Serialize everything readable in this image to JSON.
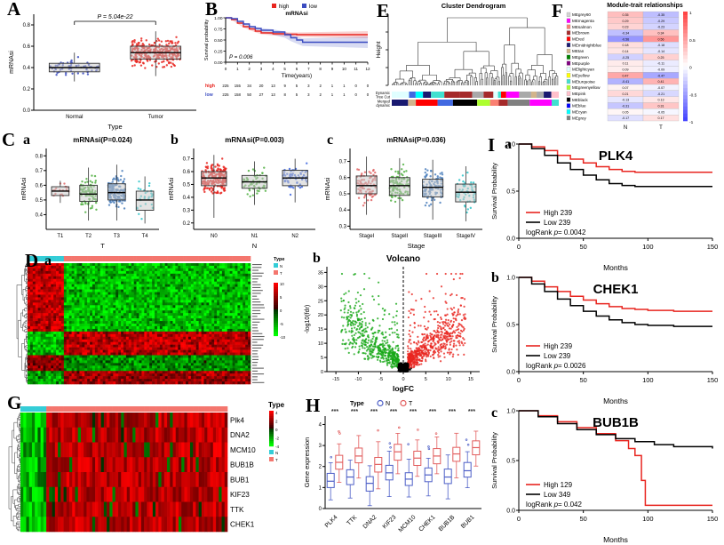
{
  "panel_labels": {
    "A": "A",
    "B": "B",
    "C": "C",
    "D": "D",
    "E": "E",
    "F": "F",
    "G": "G",
    "H": "H",
    "I": "I",
    "a": "a",
    "b": "b",
    "c": "c"
  },
  "chart_data": [
    {
      "id": "A",
      "type": "boxplot-jitter",
      "title": "",
      "p_label": "P = 5.04e-22",
      "xlabel": "Type",
      "ylabel": "mRNAsi",
      "ylim": [
        0.0,
        0.9
      ],
      "yticks": [
        0.0,
        0.2,
        0.4,
        0.6,
        0.8
      ],
      "categories": [
        "Normal",
        "Tumor"
      ],
      "point_colors": [
        "#3b4cc0",
        "#e8251f"
      ],
      "groups": [
        {
          "name": "Normal",
          "n": 60,
          "med": 0.4,
          "sd": 0.045,
          "q1": 0.36,
          "q3": 0.44,
          "lo": 0.27,
          "hi": 0.54
        },
        {
          "name": "Tumor",
          "n": 300,
          "med": 0.54,
          "sd": 0.07,
          "q1": 0.48,
          "q3": 0.6,
          "lo": 0.32,
          "hi": 0.74
        }
      ]
    },
    {
      "id": "B",
      "type": "km",
      "legend_title": "mRNAsi",
      "legend_labels": [
        "high",
        "low"
      ],
      "colors": [
        "#e8251f",
        "#3b4cc0"
      ],
      "p_label": "P = 0.006",
      "xlabel": "Time(years)",
      "ylabel": "Survival probability",
      "xticks": [
        0,
        1,
        2,
        3,
        4,
        5,
        6,
        7,
        8,
        9,
        10,
        11,
        12
      ],
      "yticks": [
        0.0,
        0.25,
        0.5,
        0.75,
        1.0
      ],
      "curves": [
        {
          "name": "high",
          "ci": 0.08,
          "points": [
            [
              0,
              1
            ],
            [
              0.5,
              0.96
            ],
            [
              1,
              0.88
            ],
            [
              1.5,
              0.8
            ],
            [
              2,
              0.75
            ],
            [
              2.5,
              0.7
            ],
            [
              3,
              0.66
            ],
            [
              4,
              0.64
            ],
            [
              5,
              0.63
            ],
            [
              6,
              0.62
            ],
            [
              7,
              0.62
            ],
            [
              12,
              0.62
            ]
          ]
        },
        {
          "name": "low",
          "ci": 0.13,
          "points": [
            [
              0,
              1
            ],
            [
              0.5,
              0.98
            ],
            [
              1,
              0.92
            ],
            [
              1.5,
              0.86
            ],
            [
              2,
              0.8
            ],
            [
              2.5,
              0.76
            ],
            [
              3,
              0.72
            ],
            [
              4,
              0.68
            ],
            [
              5,
              0.62
            ],
            [
              5.5,
              0.55
            ],
            [
              6,
              0.5
            ],
            [
              6.5,
              0.45
            ],
            [
              7,
              0.45
            ],
            [
              12,
              0.45
            ]
          ]
        }
      ],
      "risk_table": {
        "row_labels": [
          "high",
          "low"
        ],
        "rows": [
          [
            225,
            155,
            34,
            20,
            13,
            9,
            5,
            3,
            2,
            1,
            1,
            0,
            0
          ],
          [
            225,
            158,
            50,
            27,
            13,
            8,
            5,
            3,
            2,
            1,
            1,
            0,
            0
          ]
        ]
      }
    },
    {
      "id": "Ca",
      "type": "boxplot-jitter",
      "title": "mRNAsi(P=0.024)",
      "xlabel": "T",
      "ylabel": "mRNAsi",
      "ylim": [
        0.3,
        0.85
      ],
      "yticks": [
        0.4,
        0.5,
        0.6,
        0.7,
        0.8
      ],
      "categories": [
        "T1",
        "T2",
        "T3",
        "T4"
      ],
      "point_colors": [
        "#e06666",
        "#52b043",
        "#4f81bd",
        "#2ec4c9"
      ],
      "groups": [
        {
          "name": "T1",
          "n": 18,
          "med": 0.56,
          "sd": 0.03,
          "q1": 0.53,
          "q3": 0.59,
          "lo": 0.48,
          "hi": 0.63
        },
        {
          "name": "T2",
          "n": 90,
          "med": 0.54,
          "sd": 0.06,
          "q1": 0.49,
          "q3": 0.6,
          "lo": 0.36,
          "hi": 0.72
        },
        {
          "name": "T3",
          "n": 160,
          "med": 0.55,
          "sd": 0.06,
          "q1": 0.5,
          "q3": 0.61,
          "lo": 0.36,
          "hi": 0.74
        },
        {
          "name": "T4",
          "n": 28,
          "med": 0.5,
          "sd": 0.07,
          "q1": 0.43,
          "q3": 0.56,
          "lo": 0.34,
          "hi": 0.66
        }
      ]
    },
    {
      "id": "Cb",
      "type": "boxplot-jitter",
      "title": "mRNAsi(P=0.003)",
      "xlabel": "N",
      "ylabel": "mRNAsi",
      "ylim": [
        0.15,
        0.78
      ],
      "yticks": [
        0.2,
        0.3,
        0.4,
        0.5,
        0.6,
        0.7
      ],
      "categories": [
        "N0",
        "N1",
        "N2"
      ],
      "point_colors": [
        "#e8251f",
        "#52b043",
        "#4169e1"
      ],
      "groups": [
        {
          "name": "N0",
          "n": 210,
          "med": 0.55,
          "sd": 0.07,
          "q1": 0.49,
          "q3": 0.6,
          "lo": 0.24,
          "hi": 0.73
        },
        {
          "name": "N1",
          "n": 60,
          "med": 0.52,
          "sd": 0.06,
          "q1": 0.47,
          "q3": 0.57,
          "lo": 0.34,
          "hi": 0.68
        },
        {
          "name": "N2",
          "n": 70,
          "med": 0.55,
          "sd": 0.06,
          "q1": 0.49,
          "q3": 0.61,
          "lo": 0.36,
          "hi": 0.7
        }
      ]
    },
    {
      "id": "Cc",
      "type": "boxplot-jitter",
      "title": "mRNAsi(P=0.036)",
      "xlabel": "Stage",
      "ylabel": "mRNAsi",
      "ylim": [
        0.28,
        0.78
      ],
      "yticks": [
        0.3,
        0.4,
        0.5,
        0.6,
        0.7
      ],
      "categories": [
        "StageI",
        "StageII",
        "StageIII",
        "StageIV"
      ],
      "point_colors": [
        "#e06666",
        "#52b043",
        "#4f81bd",
        "#2ec4c9"
      ],
      "groups": [
        {
          "name": "StageI",
          "n": 90,
          "med": 0.55,
          "sd": 0.06,
          "q1": 0.5,
          "q3": 0.61,
          "lo": 0.37,
          "hi": 0.73
        },
        {
          "name": "StageII",
          "n": 100,
          "med": 0.55,
          "sd": 0.06,
          "q1": 0.49,
          "q3": 0.6,
          "lo": 0.35,
          "hi": 0.72
        },
        {
          "name": "StageIII",
          "n": 110,
          "med": 0.54,
          "sd": 0.06,
          "q1": 0.48,
          "q3": 0.59,
          "lo": 0.34,
          "hi": 0.71
        },
        {
          "name": "StageIV",
          "n": 55,
          "med": 0.51,
          "sd": 0.06,
          "q1": 0.45,
          "q3": 0.56,
          "lo": 0.33,
          "hi": 0.67
        }
      ]
    },
    {
      "id": "Da",
      "type": "heatmap",
      "rows": 46,
      "cols": 86,
      "split": 0.16,
      "ann_colors": [
        "#34cdd7",
        "#f4766e"
      ],
      "legend_title": "Type",
      "legend_items": [
        "N",
        "T"
      ],
      "scale_ticks": [
        10,
        5,
        0,
        -5,
        -10
      ]
    },
    {
      "id": "Db",
      "type": "volcano",
      "title": "Volcano",
      "xlabel": "logFC",
      "ylabel": "-log10(fdr)",
      "xlim": [
        -17,
        17
      ],
      "xticks": [
        -15,
        -10,
        -5,
        0,
        5,
        10,
        15
      ],
      "ylim": [
        0,
        37
      ],
      "yticks": [
        0,
        5,
        10,
        15,
        20,
        25,
        30,
        35
      ],
      "colors": {
        "up": "#e8251f",
        "down": "#18a818",
        "ns": "#000000"
      }
    },
    {
      "id": "E",
      "type": "dendrogram",
      "title": "Cluster Dendrogram",
      "ylabel": "Height",
      "band1_label": [
        "Dynamic",
        "Tree Cut"
      ],
      "band2_label": [
        "Merged",
        "dynamic"
      ],
      "band_colors": [
        "#40E0D0",
        "#4169E1",
        "#A52A2A",
        "#FFFF00",
        "#008000",
        "#FF0000",
        "#000000",
        "#FFC0CB",
        "#FF00FF",
        "#800080",
        "#ADFF2F",
        "#D2B48C",
        "#FA8072",
        "#00FFFF",
        "#191970",
        "#E0FFFF",
        "#A9A9A9",
        "#808080"
      ]
    },
    {
      "id": "F",
      "type": "module-trait",
      "title": "Module-trait relationships",
      "rows": [
        "MEgrey60",
        "MEmagenta",
        "MEsalmon",
        "MEbrown",
        "MEred",
        "MEmidnightblue",
        "MEtan",
        "MEgreen",
        "MEpurple",
        "MElightcyan",
        "MEyellow",
        "MEturquoise",
        "MEgreenyellow",
        "MEpink",
        "MEblack",
        "MEblue",
        "MEcyan",
        "MEgrey"
      ],
      "row_swatches": [
        "#d3d3d3",
        "#ff00ff",
        "#fa8072",
        "#a52a2a",
        "#ff0000",
        "#191970",
        "#d2b48c",
        "#008000",
        "#800080",
        "#e0ffff",
        "#ffff00",
        "#40e0d0",
        "#adff2f",
        "#ffc0cb",
        "#000000",
        "#0000ff",
        "#00ffff",
        "#808080"
      ],
      "values": [
        [
          0.35,
          -0.35
        ],
        [
          0.29,
          -0.29
        ],
        [
          0.23,
          -0.23
        ],
        [
          -0.34,
          0.34
        ],
        [
          -0.56,
          0.56
        ],
        [
          0.18,
          -0.18
        ],
        [
          0.14,
          -0.14
        ],
        [
          -0.25,
          0.25
        ],
        [
          0.11,
          -0.11
        ],
        [
          0.09,
          -0.09
        ],
        [
          0.47,
          -0.47
        ],
        [
          -0.41,
          0.41
        ],
        [
          0.07,
          -0.07
        ],
        [
          0.21,
          -0.21
        ],
        [
          -0.13,
          0.13
        ],
        [
          -0.31,
          0.31
        ],
        [
          0.05,
          -0.05
        ],
        [
          -0.17,
          0.17
        ]
      ],
      "col_labels": [
        "N",
        "T"
      ],
      "colorbar_ticks": [
        1,
        0.5,
        0,
        -0.5,
        -1
      ]
    },
    {
      "id": "G",
      "type": "gene-heatmap",
      "genes": [
        "Plk4",
        "DNA2",
        "MCM10",
        "BUB1B",
        "BUB1",
        "KIF23",
        "TTK",
        "CHEK1"
      ],
      "split": 0.12,
      "ann_colors": [
        "#34cdd7",
        "#f4766e"
      ],
      "legend_title": "Type",
      "legend_items": [
        "N",
        "T"
      ],
      "scale_ticks": [
        4,
        2,
        0,
        -2,
        -4
      ]
    },
    {
      "id": "H",
      "type": "grouped-box",
      "ylabel": "Gene expression",
      "legend_title": "Type",
      "legend_items": [
        {
          "label": "N",
          "color": "#4d5fc7"
        },
        {
          "label": "T",
          "color": "#e25d5d"
        }
      ],
      "sig_label": "***",
      "ylim": [
        0,
        4.4
      ],
      "yticks": [
        0,
        1,
        2,
        3,
        4
      ],
      "categories": [
        "PLK4",
        "TTK",
        "DNA2",
        "KIF23",
        "MCM10",
        "CHEK1",
        "BUB1B",
        "BUB1"
      ],
      "pairs": [
        [
          1.3,
          2.2
        ],
        [
          1.5,
          2.5
        ],
        [
          1.2,
          2.1
        ],
        [
          1.7,
          2.7
        ],
        [
          1.4,
          2.4
        ],
        [
          1.6,
          2.5
        ],
        [
          1.5,
          2.6
        ],
        [
          1.8,
          2.9
        ]
      ]
    },
    {
      "id": "Ia",
      "type": "km2",
      "title": "PLK4",
      "xlabel": "Months",
      "ylabel": "Survival Probability",
      "xticks": [
        0,
        50,
        100,
        150
      ],
      "yticks": [
        0.0,
        0.5,
        1.0
      ],
      "legend": [
        {
          "label": "High",
          "n": 239,
          "color": "#e8251f"
        },
        {
          "label": "Low",
          "n": 239,
          "color": "#000000"
        }
      ],
      "p_prefix": "logRank ",
      "p_italic": "p",
      "p_suffix": "= 0.0042",
      "curves": [
        {
          "color": "#e8251f",
          "points": [
            [
              0,
              1
            ],
            [
              10,
              0.97
            ],
            [
              20,
              0.93
            ],
            [
              30,
              0.88
            ],
            [
              40,
              0.84
            ],
            [
              50,
              0.8
            ],
            [
              60,
              0.76
            ],
            [
              70,
              0.73
            ],
            [
              80,
              0.71
            ],
            [
              90,
              0.7
            ],
            [
              110,
              0.7
            ],
            [
              150,
              0.7
            ]
          ]
        },
        {
          "color": "#000000",
          "points": [
            [
              0,
              1
            ],
            [
              10,
              0.95
            ],
            [
              20,
              0.88
            ],
            [
              30,
              0.8
            ],
            [
              40,
              0.73
            ],
            [
              50,
              0.67
            ],
            [
              60,
              0.62
            ],
            [
              70,
              0.58
            ],
            [
              80,
              0.56
            ],
            [
              90,
              0.55
            ],
            [
              110,
              0.55
            ],
            [
              150,
              0.55
            ]
          ]
        }
      ]
    },
    {
      "id": "Ib",
      "type": "km2",
      "title": "CHEK1",
      "xlabel": "Months",
      "ylabel": "Survival Probability",
      "xticks": [
        0,
        50,
        100,
        150
      ],
      "yticks": [
        0.0,
        0.5,
        1.0
      ],
      "legend": [
        {
          "label": "High",
          "n": 239,
          "color": "#e8251f"
        },
        {
          "label": "Low",
          "n": 239,
          "color": "#000000"
        }
      ],
      "p_prefix": "logRank ",
      "p_italic": "p",
      "p_suffix": "= 0.0026",
      "curves": [
        {
          "color": "#e8251f",
          "points": [
            [
              0,
              1
            ],
            [
              10,
              0.96
            ],
            [
              20,
              0.9
            ],
            [
              30,
              0.85
            ],
            [
              40,
              0.8
            ],
            [
              50,
              0.76
            ],
            [
              60,
              0.72
            ],
            [
              70,
              0.69
            ],
            [
              80,
              0.67
            ],
            [
              90,
              0.66
            ],
            [
              100,
              0.65
            ],
            [
              120,
              0.64
            ],
            [
              150,
              0.64
            ]
          ]
        },
        {
          "color": "#000000",
          "points": [
            [
              0,
              1
            ],
            [
              10,
              0.93
            ],
            [
              20,
              0.85
            ],
            [
              30,
              0.77
            ],
            [
              40,
              0.7
            ],
            [
              50,
              0.64
            ],
            [
              60,
              0.59
            ],
            [
              70,
              0.55
            ],
            [
              80,
              0.52
            ],
            [
              90,
              0.5
            ],
            [
              100,
              0.49
            ],
            [
              120,
              0.48
            ],
            [
              150,
              0.48
            ]
          ]
        }
      ]
    },
    {
      "id": "Ic",
      "type": "km2",
      "title": "BUB1B",
      "xlabel": "Months",
      "ylabel": "Survival Probability",
      "xticks": [
        0,
        50,
        100,
        150
      ],
      "yticks": [
        0.0,
        0.5,
        1.0
      ],
      "legend": [
        {
          "label": "High",
          "n": 129,
          "color": "#e8251f"
        },
        {
          "label": "Low",
          "n": 349,
          "color": "#000000"
        }
      ],
      "p_prefix": "logRank ",
      "p_italic": "p",
      "p_suffix": "= 0.042",
      "curves": [
        {
          "color": "#e8251f",
          "points": [
            [
              0,
              1
            ],
            [
              15,
              0.95
            ],
            [
              30,
              0.89
            ],
            [
              45,
              0.83
            ],
            [
              60,
              0.77
            ],
            [
              75,
              0.7
            ],
            [
              85,
              0.62
            ],
            [
              90,
              0.55
            ],
            [
              95,
              0.3
            ],
            [
              98,
              0.05
            ],
            [
              150,
              0.05
            ]
          ]
        },
        {
          "color": "#000000",
          "points": [
            [
              0,
              1
            ],
            [
              15,
              0.94
            ],
            [
              30,
              0.87
            ],
            [
              45,
              0.81
            ],
            [
              60,
              0.76
            ],
            [
              75,
              0.72
            ],
            [
              90,
              0.69
            ],
            [
              105,
              0.66
            ],
            [
              120,
              0.64
            ],
            [
              150,
              0.62
            ]
          ]
        }
      ]
    }
  ]
}
